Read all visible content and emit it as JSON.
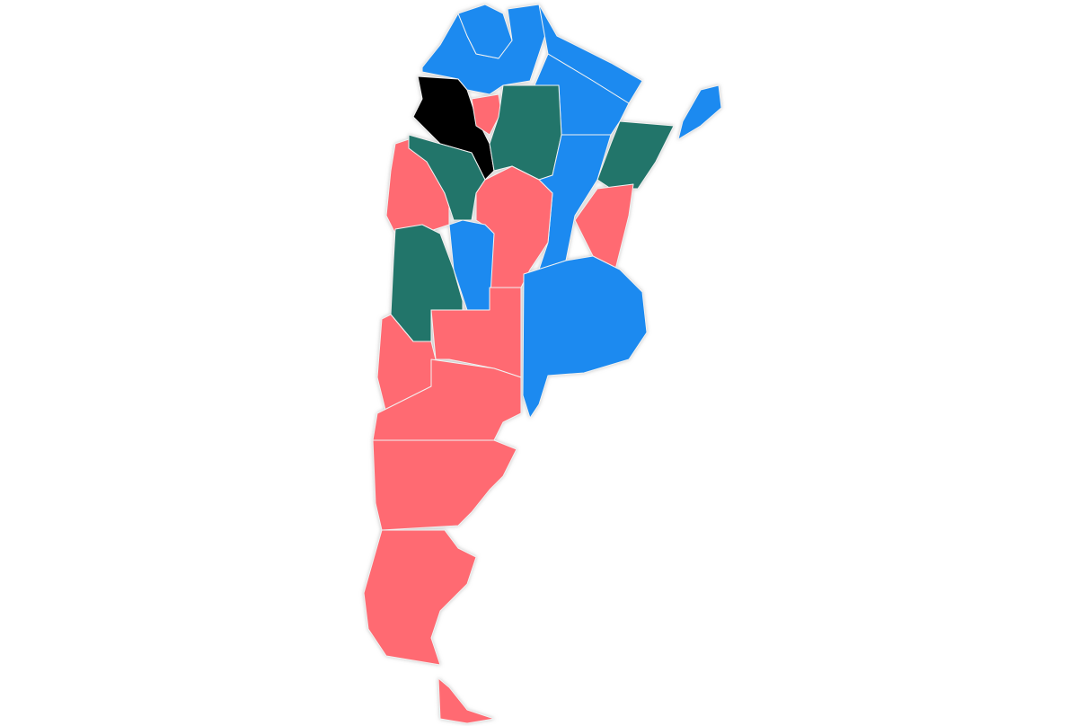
{
  "regions": [
    {
      "color": "#1a8af0"
    },
    {
      "color": "#1a8af0"
    },
    {
      "color": "#1a8af0"
    },
    {
      "color": "#1a8af0"
    },
    {
      "color": "#1a8af0"
    },
    {
      "color": "#000000"
    },
    {
      "color": "#ff6b72"
    },
    {
      "color": "#24756a"
    },
    {
      "color": "#24756a"
    },
    {
      "color": "#1a8af0"
    },
    {
      "color": "#ff6b72"
    },
    {
      "color": "#ff6b72"
    },
    {
      "color": "#24756a"
    },
    {
      "color": "#ff6b72"
    },
    {
      "color": "#1a8af0"
    },
    {
      "color": "#24756a"
    },
    {
      "color": "#1a8af0"
    },
    {
      "color": "#ff6b72"
    },
    {
      "color": "#ff6b72"
    },
    {
      "color": "#ff6b72"
    },
    {
      "color": "#ff6b72"
    },
    {
      "color": "#ff6b72"
    },
    {
      "color": "#ff6b72"
    }
  ]
}
